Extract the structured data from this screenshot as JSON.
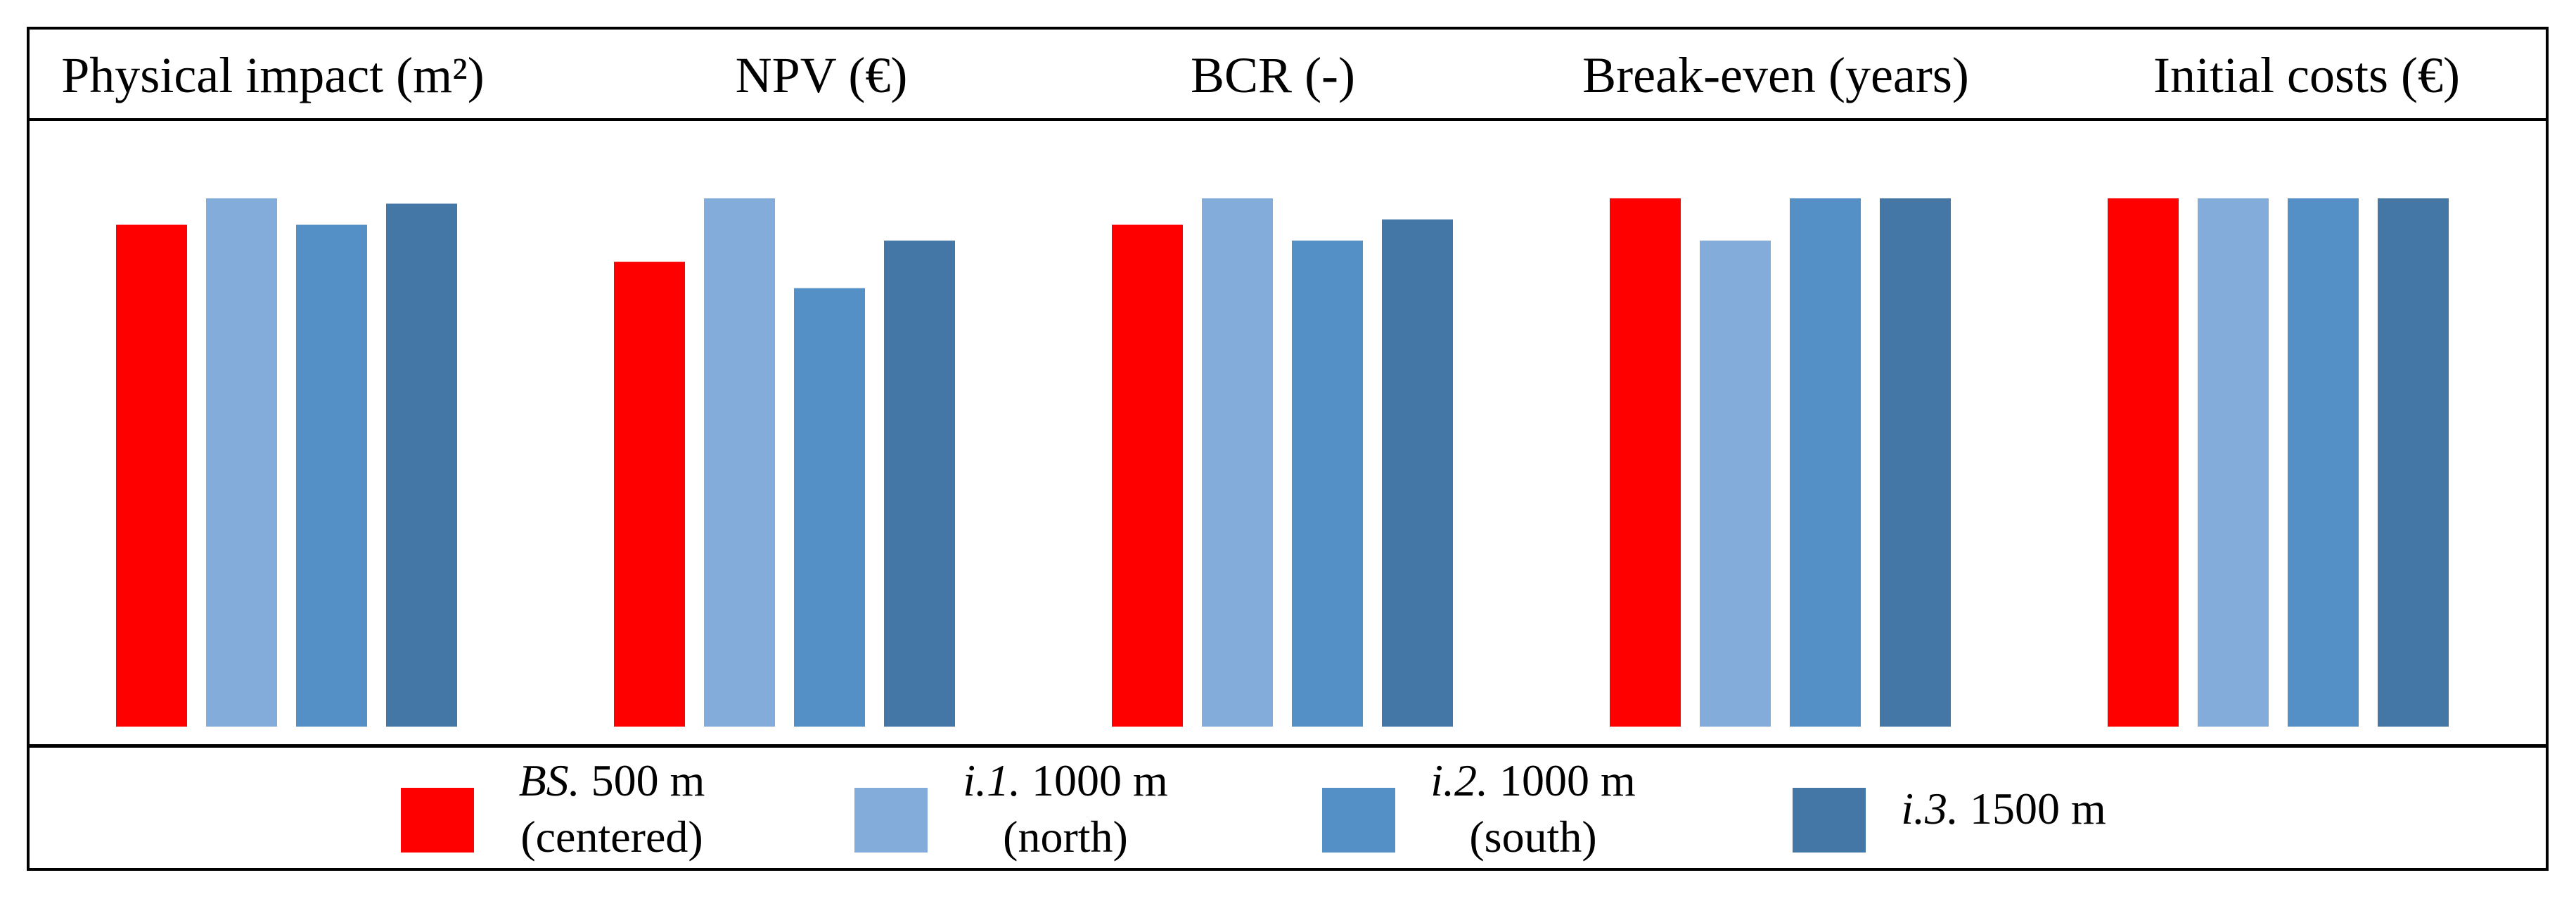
{
  "chart_data": {
    "type": "bar",
    "note": "Values are relative to the highest bar in each panel (max = 1.0); no y-axis is shown.",
    "panels": [
      {
        "title": "Physical impact (m²)",
        "values": [
          0.95,
          1.0,
          0.95,
          0.99
        ]
      },
      {
        "title": "NPV (€)",
        "values": [
          0.88,
          1.0,
          0.83,
          0.92
        ]
      },
      {
        "title": "BCR (-)",
        "values": [
          0.95,
          1.0,
          0.92,
          0.96
        ]
      },
      {
        "title": "Break-even (years)",
        "values": [
          1.0,
          0.92,
          1.0,
          1.0
        ]
      },
      {
        "title": "Initial costs (€)",
        "values": [
          1.0,
          1.0,
          1.0,
          1.0
        ]
      }
    ],
    "series": [
      {
        "name_italic": "BS.",
        "name_rest": " 500 m",
        "name_line2": "(centered)",
        "color": "#ff0000"
      },
      {
        "name_italic": "i.1.",
        "name_rest": " 1000 m",
        "name_line2": "(north)",
        "color": "#84acda"
      },
      {
        "name_italic": "i.2.",
        "name_rest": " 1000 m",
        "name_line2": "(south)",
        "color": "#5490c6"
      },
      {
        "name_italic": "i.3.",
        "name_rest": " 1500 m",
        "name_line2": "",
        "color": "#4577a6"
      }
    ],
    "ylim": [
      0,
      1
    ],
    "legend_position": "bottom"
  }
}
